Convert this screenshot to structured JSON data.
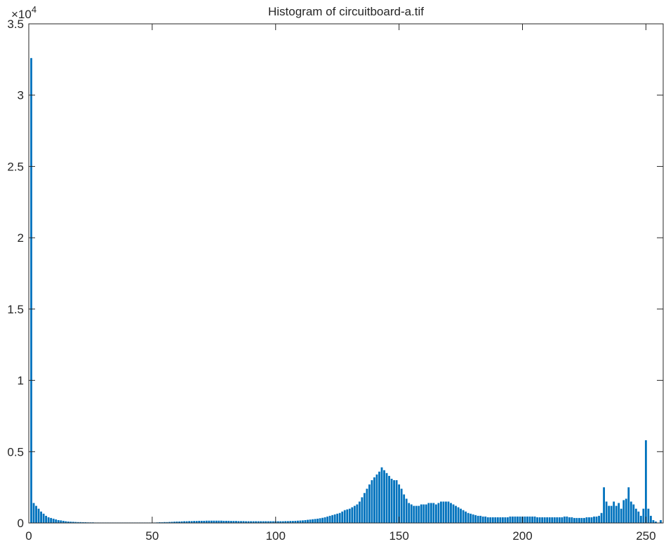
{
  "chart_data": {
    "type": "bar",
    "title": "Histogram of circuitboard-a.tif",
    "y_multiplier": {
      "base": "×10",
      "power": "4"
    },
    "color": "#0072bd",
    "xlim": [
      0,
      257
    ],
    "xticks": [
      0,
      50,
      100,
      150,
      200,
      250
    ],
    "ylim": [
      0,
      3.5
    ],
    "yticks": [
      0,
      0.5,
      1,
      1.5,
      2,
      2.5,
      3,
      3.5
    ],
    "grid": false,
    "x": [
      1,
      2,
      3,
      4,
      5,
      6,
      7,
      8,
      9,
      10,
      11,
      12,
      13,
      14,
      15,
      16,
      17,
      18,
      19,
      20,
      21,
      22,
      23,
      24,
      25,
      26,
      27,
      28,
      29,
      30,
      31,
      32,
      33,
      34,
      35,
      36,
      37,
      38,
      39,
      40,
      41,
      42,
      43,
      44,
      45,
      46,
      47,
      48,
      49,
      50,
      51,
      52,
      53,
      54,
      55,
      56,
      57,
      58,
      59,
      60,
      61,
      62,
      63,
      64,
      65,
      66,
      67,
      68,
      69,
      70,
      71,
      72,
      73,
      74,
      75,
      76,
      77,
      78,
      79,
      80,
      81,
      82,
      83,
      84,
      85,
      86,
      87,
      88,
      89,
      90,
      91,
      92,
      93,
      94,
      95,
      96,
      97,
      98,
      99,
      100,
      101,
      102,
      103,
      104,
      105,
      106,
      107,
      108,
      109,
      110,
      111,
      112,
      113,
      114,
      115,
      116,
      117,
      118,
      119,
      120,
      121,
      122,
      123,
      124,
      125,
      126,
      127,
      128,
      129,
      130,
      131,
      132,
      133,
      134,
      135,
      136,
      137,
      138,
      139,
      140,
      141,
      142,
      143,
      144,
      145,
      146,
      147,
      148,
      149,
      150,
      151,
      152,
      153,
      154,
      155,
      156,
      157,
      158,
      159,
      160,
      161,
      162,
      163,
      164,
      165,
      166,
      167,
      168,
      169,
      170,
      171,
      172,
      173,
      174,
      175,
      176,
      177,
      178,
      179,
      180,
      181,
      182,
      183,
      184,
      185,
      186,
      187,
      188,
      189,
      190,
      191,
      192,
      193,
      194,
      195,
      196,
      197,
      198,
      199,
      200,
      201,
      202,
      203,
      204,
      205,
      206,
      207,
      208,
      209,
      210,
      211,
      212,
      213,
      214,
      215,
      216,
      217,
      218,
      219,
      220,
      221,
      222,
      223,
      224,
      225,
      226,
      227,
      228,
      229,
      230,
      231,
      232,
      233,
      234,
      235,
      236,
      237,
      238,
      239,
      240,
      241,
      242,
      243,
      244,
      245,
      246,
      247,
      248,
      249,
      250,
      251,
      252,
      253,
      254,
      255,
      256
    ],
    "values": [
      3.26,
      0.14,
      0.12,
      0.1,
      0.08,
      0.065,
      0.05,
      0.04,
      0.035,
      0.03,
      0.025,
      0.02,
      0.018,
      0.015,
      0.012,
      0.01,
      0.009,
      0.008,
      0.007,
      0.006,
      0.006,
      0.005,
      0.005,
      0.004,
      0.004,
      0.004,
      0.003,
      0.003,
      0.003,
      0.003,
      0.003,
      0.003,
      0.003,
      0.003,
      0.003,
      0.003,
      0.003,
      0.003,
      0.003,
      0.003,
      0.003,
      0.003,
      0.003,
      0.003,
      0.003,
      0.003,
      0.003,
      0.003,
      0.003,
      0.003,
      0.003,
      0.004,
      0.005,
      0.005,
      0.006,
      0.006,
      0.007,
      0.008,
      0.009,
      0.01,
      0.01,
      0.011,
      0.012,
      0.012,
      0.013,
      0.013,
      0.014,
      0.014,
      0.015,
      0.015,
      0.015,
      0.016,
      0.016,
      0.016,
      0.016,
      0.016,
      0.016,
      0.016,
      0.015,
      0.015,
      0.015,
      0.014,
      0.014,
      0.014,
      0.013,
      0.013,
      0.013,
      0.012,
      0.012,
      0.012,
      0.012,
      0.012,
      0.012,
      0.012,
      0.012,
      0.012,
      0.012,
      0.012,
      0.012,
      0.012,
      0.012,
      0.012,
      0.012,
      0.013,
      0.013,
      0.014,
      0.014,
      0.015,
      0.016,
      0.017,
      0.018,
      0.02,
      0.022,
      0.024,
      0.026,
      0.028,
      0.03,
      0.033,
      0.036,
      0.04,
      0.045,
      0.05,
      0.055,
      0.06,
      0.065,
      0.07,
      0.08,
      0.09,
      0.095,
      0.1,
      0.11,
      0.12,
      0.13,
      0.15,
      0.18,
      0.21,
      0.24,
      0.27,
      0.3,
      0.32,
      0.34,
      0.36,
      0.39,
      0.37,
      0.35,
      0.33,
      0.31,
      0.3,
      0.3,
      0.27,
      0.24,
      0.2,
      0.17,
      0.14,
      0.13,
      0.12,
      0.12,
      0.12,
      0.13,
      0.13,
      0.13,
      0.14,
      0.14,
      0.14,
      0.13,
      0.14,
      0.15,
      0.15,
      0.15,
      0.15,
      0.14,
      0.13,
      0.12,
      0.11,
      0.1,
      0.09,
      0.08,
      0.07,
      0.065,
      0.06,
      0.055,
      0.05,
      0.05,
      0.045,
      0.045,
      0.04,
      0.04,
      0.04,
      0.04,
      0.04,
      0.04,
      0.04,
      0.04,
      0.04,
      0.045,
      0.045,
      0.045,
      0.045,
      0.045,
      0.045,
      0.045,
      0.045,
      0.045,
      0.045,
      0.045,
      0.04,
      0.04,
      0.04,
      0.04,
      0.04,
      0.04,
      0.04,
      0.04,
      0.04,
      0.04,
      0.04,
      0.045,
      0.045,
      0.04,
      0.04,
      0.035,
      0.035,
      0.035,
      0.035,
      0.035,
      0.04,
      0.04,
      0.04,
      0.045,
      0.045,
      0.05,
      0.07,
      0.25,
      0.15,
      0.12,
      0.12,
      0.15,
      0.12,
      0.14,
      0.1,
      0.16,
      0.17,
      0.25,
      0.15,
      0.13,
      0.1,
      0.08,
      0.05,
      0.1,
      0.58,
      0.1,
      0.05,
      0.02,
      0.01,
      0.002,
      0.02
    ]
  }
}
